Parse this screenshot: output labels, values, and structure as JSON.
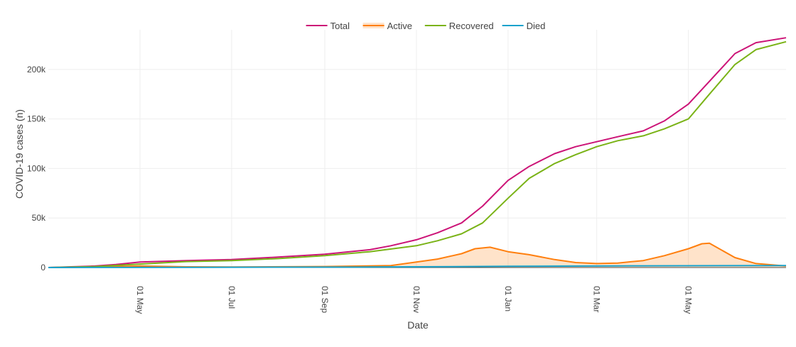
{
  "chart_data": {
    "type": "line",
    "xlabel": "Date",
    "ylabel": "COVID-19 cases (n)",
    "grid": true,
    "legend_position": "top-center",
    "x_start": "2020-03-01",
    "x_end": "2021-07-05",
    "ylim": [
      0,
      240000
    ],
    "yticks": [
      {
        "value": 0,
        "label": "0"
      },
      {
        "value": 50000,
        "label": "50k"
      },
      {
        "value": 100000,
        "label": "100k"
      },
      {
        "value": 150000,
        "label": "150k"
      },
      {
        "value": 200000,
        "label": "200k"
      }
    ],
    "xticks": [
      {
        "date": "2020-05-01",
        "label": "01 May"
      },
      {
        "date": "2020-07-01",
        "label": "01 Jul"
      },
      {
        "date": "2020-09-01",
        "label": "01 Sep"
      },
      {
        "date": "2020-11-01",
        "label": "01 Nov"
      },
      {
        "date": "2021-01-01",
        "label": "01 Jan"
      },
      {
        "date": "2021-03-01",
        "label": "01 Mar"
      },
      {
        "date": "2021-05-01",
        "label": "01 May"
      }
    ],
    "series": [
      {
        "name": "Total",
        "color": "#cc1477",
        "fill": false,
        "points": [
          [
            "2020-03-01",
            0
          ],
          [
            "2020-04-01",
            1500
          ],
          [
            "2020-04-15",
            3000
          ],
          [
            "2020-05-01",
            5500
          ],
          [
            "2020-06-01",
            7000
          ],
          [
            "2020-07-01",
            8000
          ],
          [
            "2020-08-01",
            10500
          ],
          [
            "2020-09-01",
            13500
          ],
          [
            "2020-10-01",
            18000
          ],
          [
            "2020-10-15",
            22000
          ],
          [
            "2020-11-01",
            28000
          ],
          [
            "2020-11-15",
            35000
          ],
          [
            "2020-12-01",
            45000
          ],
          [
            "2020-12-15",
            62000
          ],
          [
            "2021-01-01",
            88000
          ],
          [
            "2021-01-15",
            102000
          ],
          [
            "2021-02-01",
            115000
          ],
          [
            "2021-02-15",
            122000
          ],
          [
            "2021-03-01",
            127000
          ],
          [
            "2021-03-15",
            132000
          ],
          [
            "2021-04-01",
            138000
          ],
          [
            "2021-04-15",
            148000
          ],
          [
            "2021-05-01",
            165000
          ],
          [
            "2021-05-15",
            188000
          ],
          [
            "2021-06-01",
            216000
          ],
          [
            "2021-06-15",
            227000
          ],
          [
            "2021-07-05",
            232000
          ]
        ]
      },
      {
        "name": "Active",
        "color": "#ff7f0e",
        "fill": true,
        "fill_color": "rgba(255,127,14,0.22)",
        "points": [
          [
            "2020-03-01",
            0
          ],
          [
            "2020-04-01",
            500
          ],
          [
            "2020-05-01",
            1500
          ],
          [
            "2020-06-01",
            700
          ],
          [
            "2020-07-01",
            500
          ],
          [
            "2020-09-01",
            1000
          ],
          [
            "2020-10-15",
            2000
          ],
          [
            "2020-11-01",
            5500
          ],
          [
            "2020-11-15",
            8500
          ],
          [
            "2020-12-01",
            14000
          ],
          [
            "2020-12-10",
            19000
          ],
          [
            "2020-12-20",
            20500
          ],
          [
            "2021-01-01",
            16000
          ],
          [
            "2021-01-15",
            13000
          ],
          [
            "2021-02-01",
            8000
          ],
          [
            "2021-02-15",
            5000
          ],
          [
            "2021-03-01",
            4000
          ],
          [
            "2021-03-15",
            4500
          ],
          [
            "2021-04-01",
            7000
          ],
          [
            "2021-04-15",
            12000
          ],
          [
            "2021-05-01",
            19000
          ],
          [
            "2021-05-10",
            24000
          ],
          [
            "2021-05-15",
            24500
          ],
          [
            "2021-06-01",
            10000
          ],
          [
            "2021-06-15",
            4000
          ],
          [
            "2021-07-05",
            1500
          ]
        ]
      },
      {
        "name": "Recovered",
        "color": "#7ab317",
        "fill": false,
        "points": [
          [
            "2020-03-01",
            0
          ],
          [
            "2020-04-01",
            1000
          ],
          [
            "2020-05-01",
            3500
          ],
          [
            "2020-06-01",
            6000
          ],
          [
            "2020-07-01",
            7000
          ],
          [
            "2020-08-01",
            9000
          ],
          [
            "2020-09-01",
            12000
          ],
          [
            "2020-10-01",
            16000
          ],
          [
            "2020-11-01",
            22000
          ],
          [
            "2020-11-15",
            27000
          ],
          [
            "2020-12-01",
            34000
          ],
          [
            "2020-12-15",
            45000
          ],
          [
            "2021-01-01",
            70000
          ],
          [
            "2021-01-15",
            90000
          ],
          [
            "2021-02-01",
            105000
          ],
          [
            "2021-02-15",
            114000
          ],
          [
            "2021-03-01",
            122000
          ],
          [
            "2021-03-15",
            128000
          ],
          [
            "2021-04-01",
            133000
          ],
          [
            "2021-04-15",
            140000
          ],
          [
            "2021-05-01",
            150000
          ],
          [
            "2021-05-15",
            175000
          ],
          [
            "2021-06-01",
            205000
          ],
          [
            "2021-06-15",
            220000
          ],
          [
            "2021-07-05",
            228000
          ]
        ]
      },
      {
        "name": "Died",
        "color": "#17a2cc",
        "fill": false,
        "points": [
          [
            "2020-03-01",
            0
          ],
          [
            "2020-06-01",
            200
          ],
          [
            "2020-10-01",
            500
          ],
          [
            "2021-01-01",
            1200
          ],
          [
            "2021-04-01",
            1700
          ],
          [
            "2021-07-05",
            2000
          ]
        ]
      }
    ]
  }
}
